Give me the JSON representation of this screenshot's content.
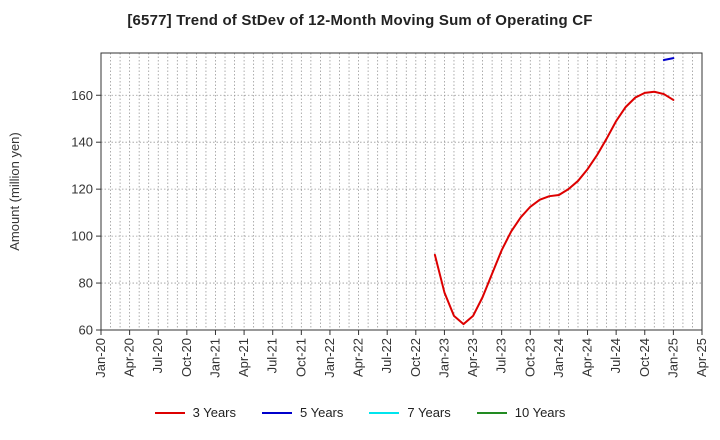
{
  "chart_data": {
    "type": "line",
    "title": "[6577]  Trend of StDev of 12-Month Moving Sum of Operating CF",
    "ylabel": "Amount (million yen)",
    "xlabel": "",
    "ylim": [
      60,
      178
    ],
    "yticks": [
      60,
      80,
      100,
      120,
      140,
      160
    ],
    "xticks": [
      "Jan-20",
      "Apr-20",
      "Jul-20",
      "Oct-20",
      "Jan-21",
      "Apr-21",
      "Jul-21",
      "Oct-21",
      "Jan-22",
      "Apr-22",
      "Jul-22",
      "Oct-22",
      "Jan-23",
      "Apr-23",
      "Jul-23",
      "Oct-23",
      "Jan-24",
      "Apr-24",
      "Jul-24",
      "Oct-24",
      "Jan-25",
      "Apr-25"
    ],
    "grid": true,
    "legend_position": "bottom",
    "series": [
      {
        "name": "3 Years",
        "color": "#dd0000",
        "points": [
          [
            "Dec-22",
            92
          ],
          [
            "Jan-23",
            76
          ],
          [
            "Feb-23",
            66
          ],
          [
            "Mar-23",
            62.5
          ],
          [
            "Apr-23",
            66
          ],
          [
            "May-23",
            74
          ],
          [
            "Jun-23",
            84
          ],
          [
            "Jul-23",
            94
          ],
          [
            "Aug-23",
            102
          ],
          [
            "Sep-23",
            108
          ],
          [
            "Oct-23",
            112.5
          ],
          [
            "Nov-23",
            115.5
          ],
          [
            "Dec-23",
            117
          ],
          [
            "Jan-24",
            117.5
          ],
          [
            "Feb-24",
            120
          ],
          [
            "Mar-24",
            123.5
          ],
          [
            "Apr-24",
            128.5
          ],
          [
            "May-24",
            134.5
          ],
          [
            "Jun-24",
            141.5
          ],
          [
            "Jul-24",
            149
          ],
          [
            "Aug-24",
            155
          ],
          [
            "Sep-24",
            159
          ],
          [
            "Oct-24",
            161
          ],
          [
            "Nov-24",
            161.5
          ],
          [
            "Dec-24",
            160.5
          ],
          [
            "Jan-25",
            158
          ]
        ]
      },
      {
        "name": "5 Years",
        "color": "#0000cc",
        "points": [
          [
            "Dec-24",
            175
          ],
          [
            "Jan-25",
            175.8
          ]
        ]
      },
      {
        "name": "7 Years",
        "color": "#00e5ee",
        "points": []
      },
      {
        "name": "10 Years",
        "color": "#228b22",
        "points": []
      }
    ]
  }
}
